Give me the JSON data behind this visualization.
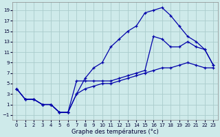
{
  "xlabel": "Graphe des températures (°c)",
  "bg_color": "#ceeaea",
  "grid_color": "#aacccc",
  "line_color": "#0000aa",
  "x_ticks": [
    0,
    1,
    2,
    3,
    4,
    5,
    6,
    7,
    8,
    9,
    10,
    11,
    12,
    13,
    14,
    15,
    16,
    17,
    18,
    19,
    20,
    21,
    22,
    23
  ],
  "y_ticks": [
    -1,
    1,
    3,
    5,
    7,
    9,
    11,
    13,
    15,
    17,
    19
  ],
  "ylim": [
    -2,
    20.5
  ],
  "xlim": [
    -0.5,
    23.5
  ],
  "curve1_x": [
    0,
    1,
    2,
    3,
    4,
    5,
    6,
    7,
    8,
    9,
    10,
    11,
    12,
    13,
    14,
    15,
    16,
    17,
    18,
    19,
    20,
    21,
    22,
    23
  ],
  "curve1_y": [
    4,
    2,
    2,
    1,
    1,
    -0.5,
    -0.5,
    3,
    6,
    8,
    9,
    12,
    13.5,
    15,
    16,
    18.5,
    19,
    19.5,
    18,
    16,
    14,
    13,
    11.5,
    8.5
  ],
  "curve2_x": [
    0,
    1,
    2,
    3,
    4,
    5,
    6,
    7,
    8,
    9,
    10,
    11,
    12,
    13,
    14,
    15,
    16,
    17,
    18,
    19,
    20,
    21,
    22,
    23
  ],
  "curve2_y": [
    4,
    2,
    2,
    1,
    1,
    -0.5,
    -0.5,
    5.5,
    5.5,
    5.5,
    5.5,
    5.5,
    6,
    6.5,
    7,
    7.5,
    14,
    13.5,
    12,
    12,
    13,
    12,
    11.5,
    8.5
  ],
  "curve3_x": [
    0,
    1,
    2,
    3,
    4,
    5,
    6,
    7,
    8,
    9,
    10,
    11,
    12,
    13,
    14,
    15,
    16,
    17,
    18,
    19,
    20,
    21,
    22,
    23
  ],
  "curve3_y": [
    4,
    2,
    2,
    1,
    1,
    -0.5,
    -0.5,
    3,
    4,
    4.5,
    5,
    5,
    5.5,
    6,
    6.5,
    7,
    7.5,
    8,
    8,
    8.5,
    9,
    8.5,
    8,
    8
  ]
}
